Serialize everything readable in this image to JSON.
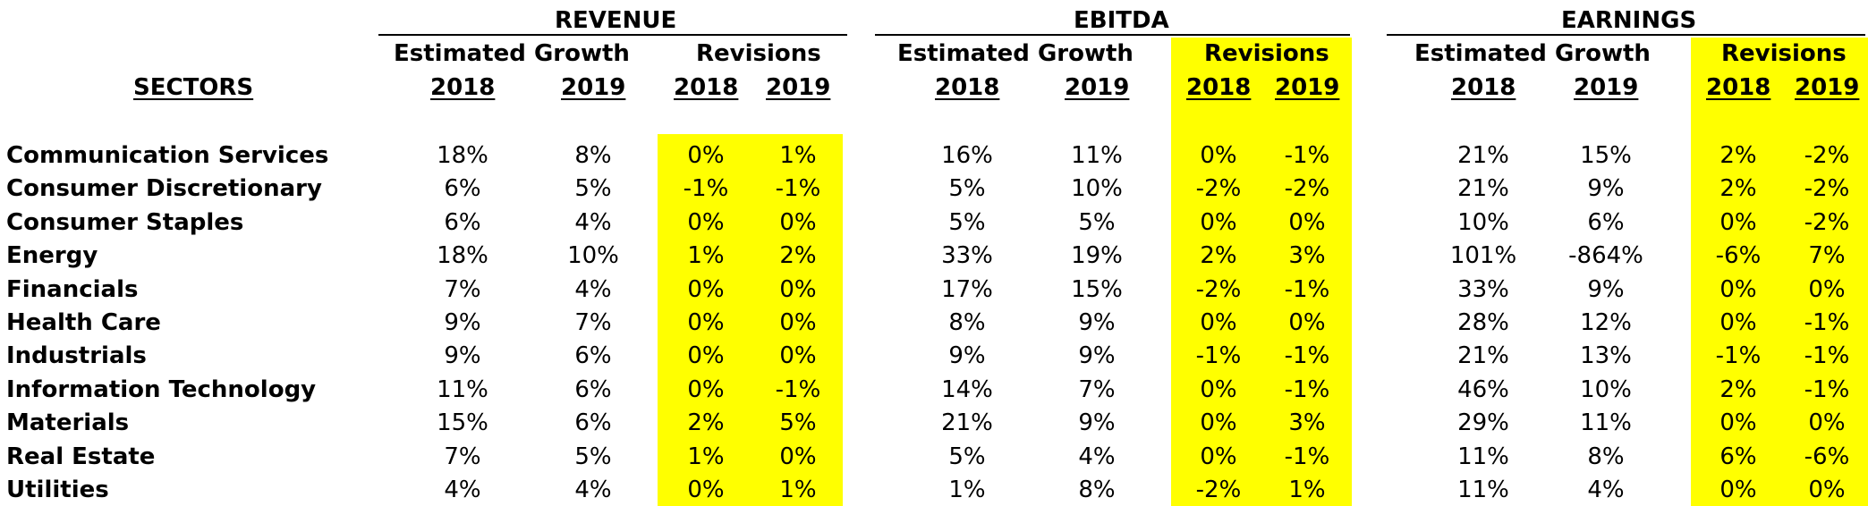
{
  "groups": {
    "revenue": "REVENUE",
    "ebitda": "EBITDA",
    "earnings": "EARNINGS"
  },
  "subheaders": {
    "estimated_growth": "Estimated Growth",
    "revisions": "Revisions"
  },
  "years": {
    "y2018": "2018",
    "y2019": "2019"
  },
  "sectors_header": "SECTORS",
  "highlight_color": "#ffff00",
  "rows": [
    {
      "sector": "Communication Services",
      "values": [
        "18%",
        "8%",
        "0%",
        "1%",
        "16%",
        "11%",
        "0%",
        "-1%",
        "21%",
        "15%",
        "2%",
        "-2%"
      ]
    },
    {
      "sector": "Consumer Discretionary",
      "values": [
        "6%",
        "5%",
        "-1%",
        "-1%",
        "5%",
        "10%",
        "-2%",
        "-2%",
        "21%",
        "9%",
        "2%",
        "-2%"
      ]
    },
    {
      "sector": "Consumer Staples",
      "values": [
        "6%",
        "4%",
        "0%",
        "0%",
        "5%",
        "5%",
        "0%",
        "0%",
        "10%",
        "6%",
        "0%",
        "-2%"
      ]
    },
    {
      "sector": "Energy",
      "values": [
        "18%",
        "10%",
        "1%",
        "2%",
        "33%",
        "19%",
        "2%",
        "3%",
        "101%",
        "-864%",
        "-6%",
        "7%"
      ]
    },
    {
      "sector": "Financials",
      "values": [
        "7%",
        "4%",
        "0%",
        "0%",
        "17%",
        "15%",
        "-2%",
        "-1%",
        "33%",
        "9%",
        "0%",
        "0%"
      ]
    },
    {
      "sector": "Health Care",
      "values": [
        "9%",
        "7%",
        "0%",
        "0%",
        "8%",
        "9%",
        "0%",
        "0%",
        "28%",
        "12%",
        "0%",
        "-1%"
      ]
    },
    {
      "sector": "Industrials",
      "values": [
        "9%",
        "6%",
        "0%",
        "0%",
        "9%",
        "9%",
        "-1%",
        "-1%",
        "21%",
        "13%",
        "-1%",
        "-1%"
      ]
    },
    {
      "sector": "Information Technology",
      "values": [
        "11%",
        "6%",
        "0%",
        "-1%",
        "14%",
        "7%",
        "0%",
        "-1%",
        "46%",
        "10%",
        "2%",
        "-1%"
      ]
    },
    {
      "sector": "Materials",
      "values": [
        "15%",
        "6%",
        "2%",
        "5%",
        "21%",
        "9%",
        "0%",
        "3%",
        "29%",
        "11%",
        "0%",
        "0%"
      ]
    },
    {
      "sector": "Real Estate",
      "values": [
        "7%",
        "5%",
        "1%",
        "0%",
        "5%",
        "4%",
        "0%",
        "-1%",
        "11%",
        "8%",
        "6%",
        "-6%"
      ]
    },
    {
      "sector": "Utilities",
      "values": [
        "4%",
        "4%",
        "0%",
        "1%",
        "1%",
        "8%",
        "-2%",
        "1%",
        "11%",
        "4%",
        "0%",
        "0%"
      ]
    }
  ]
}
